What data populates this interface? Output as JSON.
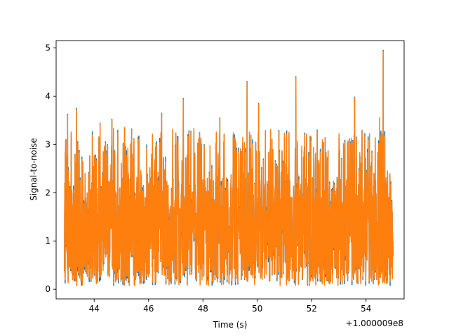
{
  "chart_data": {
    "type": "line",
    "xlabel": "Time (s)",
    "ylabel": "Signal-to-noise",
    "x_offset_label": "+1.000009e8",
    "xlim": [
      42.6,
      55.4
    ],
    "ylim": [
      -0.2,
      5.15
    ],
    "x_ticks": [
      44,
      46,
      48,
      50,
      52,
      54
    ],
    "x_tick_labels": [
      "44",
      "46",
      "48",
      "50",
      "52",
      "54"
    ],
    "y_ticks": [
      0,
      1,
      2,
      3,
      4,
      5
    ],
    "y_tick_labels": [
      "0",
      "1",
      "2",
      "3",
      "4",
      "5"
    ],
    "grid": false,
    "x_range": [
      42.9,
      55.0
    ],
    "series": [
      {
        "color": "#1f77b4",
        "peaks": [
          {
            "x": 43.02,
            "y": 3.62
          },
          {
            "x": 43.35,
            "y": 3.75
          },
          {
            "x": 44.22,
            "y": 3.44
          },
          {
            "x": 44.65,
            "y": 3.52
          },
          {
            "x": 45.38,
            "y": 3.32
          },
          {
            "x": 46.48,
            "y": 3.65
          },
          {
            "x": 47.28,
            "y": 3.95
          },
          {
            "x": 48.62,
            "y": 3.55
          },
          {
            "x": 49.62,
            "y": 4.3
          },
          {
            "x": 50.05,
            "y": 3.85
          },
          {
            "x": 51.42,
            "y": 4.4
          },
          {
            "x": 52.2,
            "y": 3.3
          },
          {
            "x": 53.58,
            "y": 3.98
          },
          {
            "x": 54.5,
            "y": 3.55
          },
          {
            "x": 54.63,
            "y": 4.95
          }
        ]
      },
      {
        "color": "#ff7f0e",
        "peaks": [
          {
            "x": 43.02,
            "y": 3.6
          },
          {
            "x": 43.35,
            "y": 3.72
          },
          {
            "x": 44.22,
            "y": 3.42
          },
          {
            "x": 44.65,
            "y": 3.5
          },
          {
            "x": 45.38,
            "y": 3.3
          },
          {
            "x": 46.48,
            "y": 3.63
          },
          {
            "x": 47.28,
            "y": 3.93
          },
          {
            "x": 48.62,
            "y": 3.53
          },
          {
            "x": 49.62,
            "y": 4.28
          },
          {
            "x": 50.05,
            "y": 3.83
          },
          {
            "x": 51.42,
            "y": 4.38
          },
          {
            "x": 52.2,
            "y": 3.28
          },
          {
            "x": 53.58,
            "y": 3.96
          },
          {
            "x": 54.5,
            "y": 3.53
          },
          {
            "x": 54.63,
            "y": 4.92
          }
        ]
      }
    ]
  }
}
